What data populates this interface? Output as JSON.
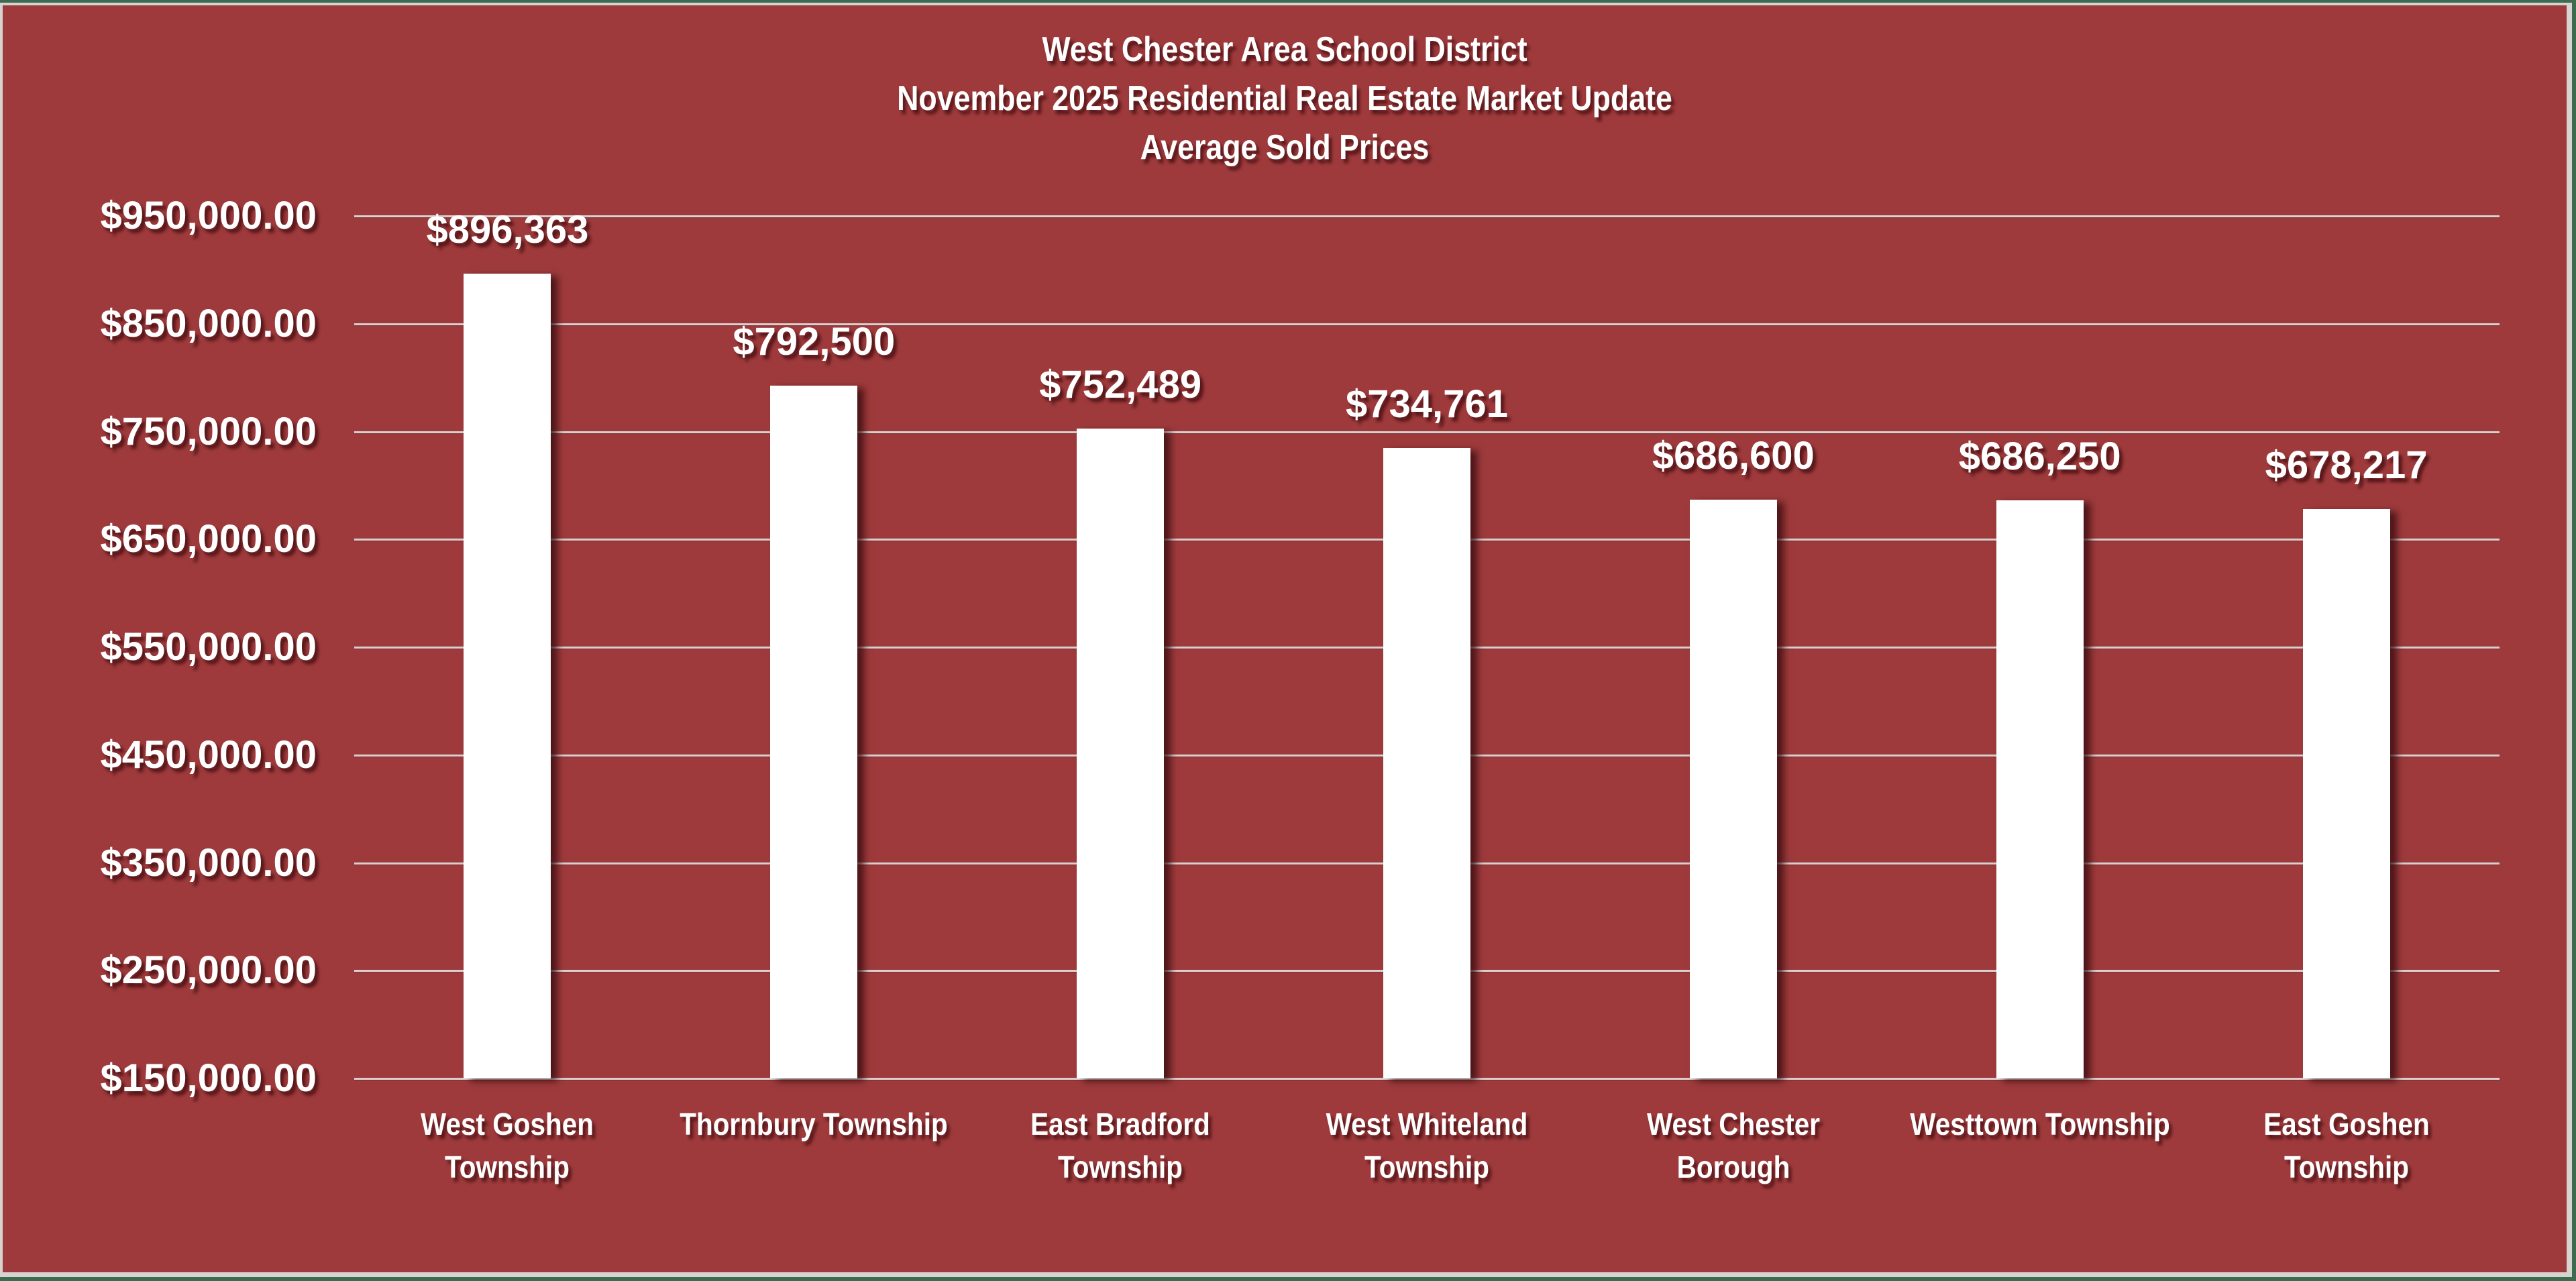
{
  "chart_data": {
    "type": "bar",
    "title": "West Chester Area School District",
    "subtitle_lines": [
      "November 2025 Residential Real Estate Market Update",
      "Average Sold Prices"
    ],
    "categories": [
      "West Goshen Township",
      "Thornbury Township",
      "East Bradford Township",
      "West Whiteland Township",
      "West Chester Borough",
      "Westtown Township",
      "East Goshen Township"
    ],
    "category_lines": [
      [
        "West Goshen",
        "Township"
      ],
      [
        "Thornbury Township"
      ],
      [
        "East Bradford",
        "Township"
      ],
      [
        "West Whiteland",
        "Township"
      ],
      [
        "West Chester",
        "Borough"
      ],
      [
        "Westtown Township"
      ],
      [
        "East Goshen",
        "Township"
      ]
    ],
    "values": [
      896363,
      792500,
      752489,
      734761,
      686600,
      686250,
      678217
    ],
    "data_labels": [
      "$896,363",
      "$792,500",
      "$752,489",
      "$734,761",
      "$686,600",
      "$686,250",
      "$678,217"
    ],
    "xlabel": "",
    "ylabel": "",
    "ylim": [
      150000,
      950000
    ],
    "yticks": [
      950000,
      850000,
      750000,
      650000,
      550000,
      450000,
      350000,
      250000,
      150000
    ],
    "ytick_labels": [
      "$950,000.00",
      "$850,000.00",
      "$750,000.00",
      "$650,000.00",
      "$550,000.00",
      "$450,000.00",
      "$350,000.00",
      "$250,000.00",
      "$150,000.00"
    ],
    "grid": true,
    "legend": null,
    "colors": {
      "background": "#9e3a3c",
      "bars": "#ffffff",
      "text": "#ffffff",
      "grid": "#d9cfcf"
    }
  }
}
